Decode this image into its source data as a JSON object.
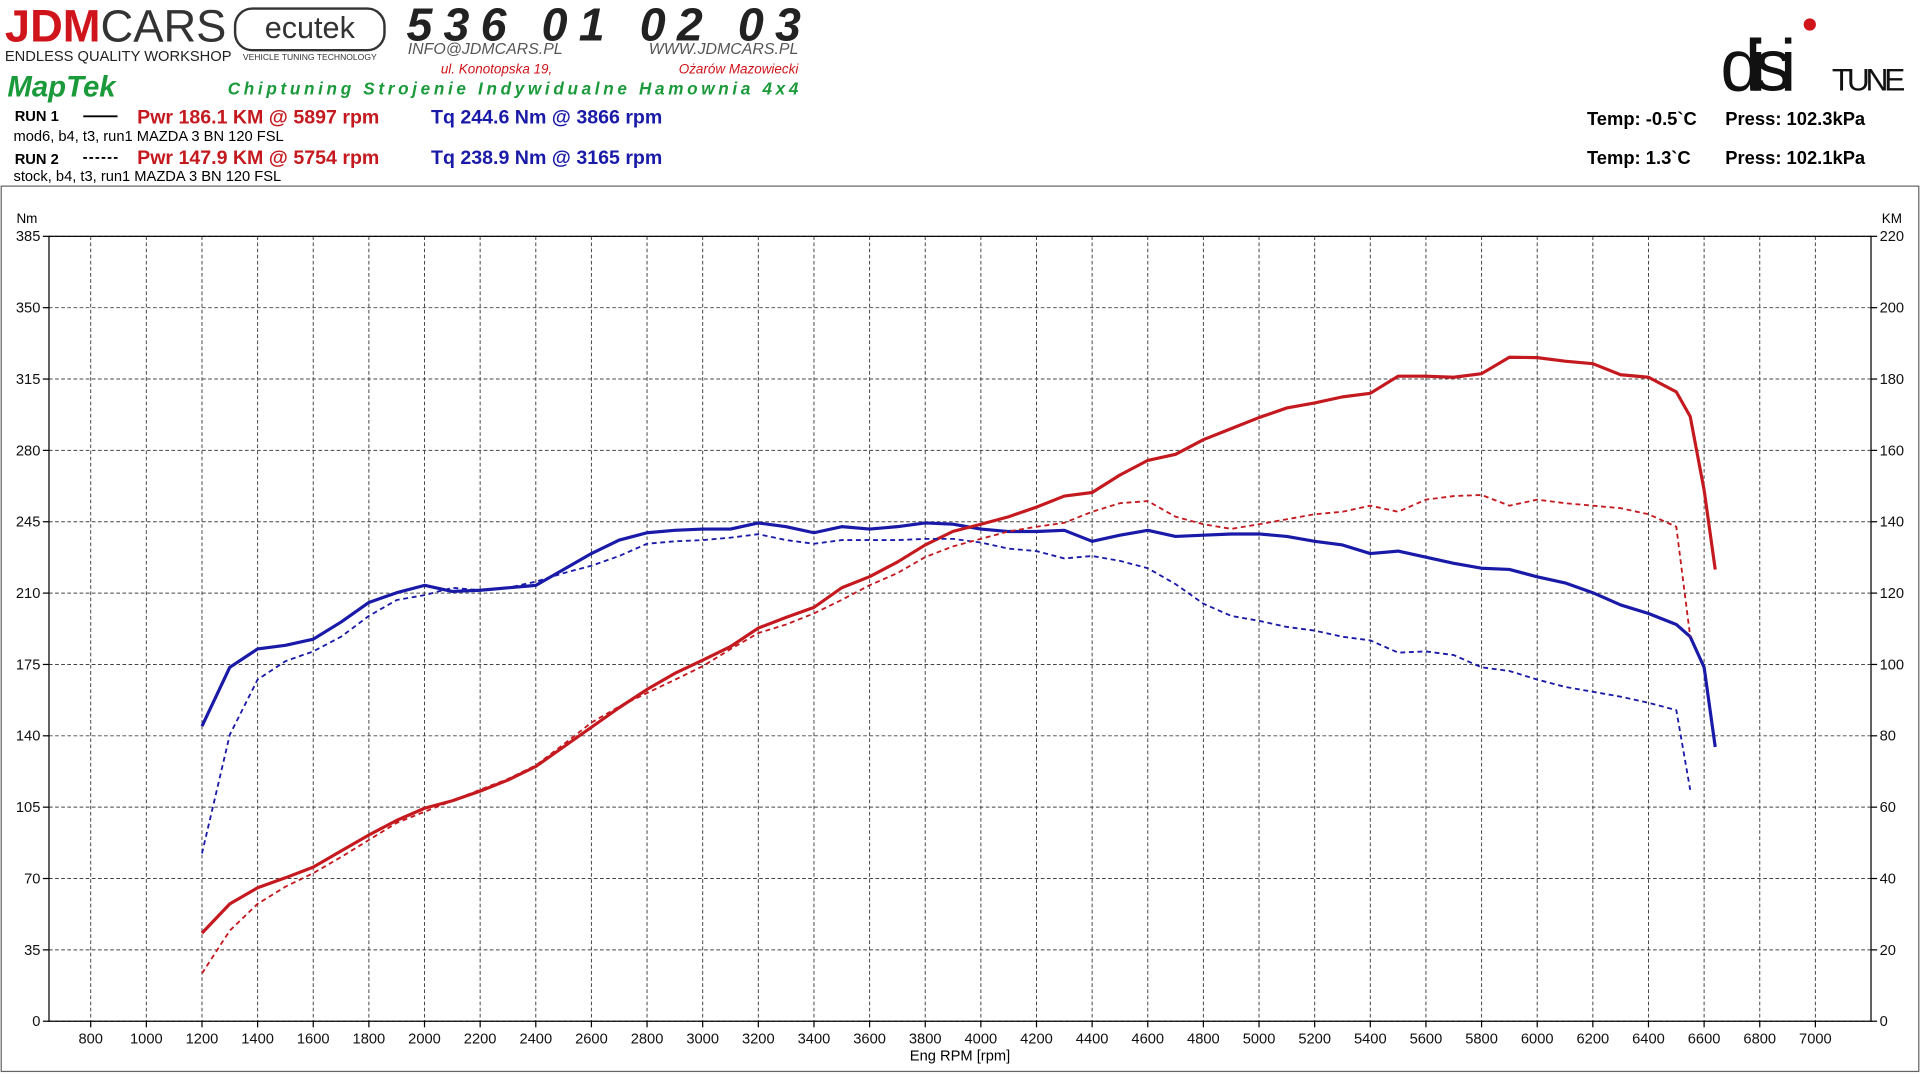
{
  "header": {
    "jdm": "JDM",
    "cars": "CARS",
    "workshop": "ENDLESS QUALITY WORKSHOP",
    "ecutek": "ecutek",
    "ecutek_sub": "VEHICLE TUNING TECHNOLOGY",
    "phone": "536 01 02 03",
    "email": "INFO@JDMCARS.PL",
    "www": "WWW.JDMCARS.PL",
    "street": "ul. Konotopska 19,",
    "city": "Ożarów Mazowiecki",
    "maptek": "MapTek",
    "services": "Chiptuning Strojenie Indywidualne Hamownia 4x4",
    "disi": "disi",
    "tune": "TUNE"
  },
  "chart_data": {
    "type": "line",
    "x_label": "Eng RPM [rpm]",
    "y_label": "Nm",
    "y2_label": "KM",
    "runs": [
      {
        "pwr": "Pwr  186.1 KM @ 5897 rpm",
        "tq": "Tq 244.6 Nm @ 3866 rpm",
        "desc": "mod6, b4, t3, run1 MAZDA 3 BN 120 FSL",
        "temp": "Temp: -0.5`C",
        "press": "Press: 102.3kPa"
      },
      {
        "pwr": "Pwr  147.9 KM @ 5754 rpm",
        "tq": "Tq 238.9 Nm @ 3165 rpm",
        "desc": "stock, b4, t3, run1 MAZDA 3 BN 120 FSL",
        "temp": "Temp: 1.3`C",
        "press": "Press: 102.1kPa"
      }
    ],
    "x": [
      1200,
      1300,
      1400,
      1500,
      1600,
      1700,
      1800,
      1900,
      2000,
      2100,
      2200,
      2300,
      2400,
      2500,
      2600,
      2700,
      2800,
      2900,
      3000,
      3100,
      3200,
      3300,
      3400,
      3500,
      3600,
      3700,
      3800,
      3900,
      4000,
      4100,
      4200,
      4300,
      4400,
      4500,
      4600,
      4700,
      4800,
      4900,
      5000,
      5100,
      5200,
      5300,
      5400,
      5500,
      5600,
      5700,
      5800,
      5900,
      6000,
      6100,
      6200,
      6300,
      6400,
      6500,
      6550,
      6600,
      6640
    ],
    "series": [
      {
        "name": "RUN 1",
        "color": "#1a1aa8",
        "dashed": false,
        "values": [
          144.7,
          173.6,
          182.6,
          184.4,
          187.4,
          195.8,
          205.4,
          210.2,
          213.8,
          210.8,
          211.4,
          212.6,
          213.8,
          221.6,
          229.4,
          236.0,
          239.6,
          240.8,
          241.4,
          241.4,
          244.4,
          242.6,
          239.6,
          242.6,
          241.4,
          242.6,
          244.4,
          243.8,
          241.4,
          240.2,
          240.2,
          240.8,
          235.4,
          238.4,
          240.8,
          237.8,
          238.4,
          239.0,
          239.0,
          237.8,
          235.4,
          233.6,
          229.4,
          230.6,
          227.6,
          224.6,
          222.2,
          221.6,
          218.0,
          215.0,
          210.2,
          204.2,
          200.0,
          194.6,
          188.6,
          173.6,
          134.5
        ]
      },
      {
        "color": "#c41a1f",
        "axis": "y2",
        "dashed": false,
        "values": [
          24.7,
          32.9,
          37.4,
          40.2,
          43.2,
          47.7,
          52.2,
          56.3,
          59.7,
          61.8,
          64.5,
          67.6,
          71.4,
          76.9,
          82.4,
          87.9,
          93.0,
          97.5,
          101.2,
          105.0,
          110.2,
          113.2,
          116.0,
          121.5,
          124.6,
          128.7,
          133.5,
          137.3,
          139.3,
          141.4,
          144.1,
          147.2,
          148.2,
          153.1,
          157.2,
          158.9,
          163.0,
          166.1,
          169.2,
          171.9,
          173.3,
          175.0,
          176.0,
          180.8,
          180.8,
          180.5,
          181.5,
          186.1,
          186.0,
          185.0,
          184.3,
          181.2,
          180.5,
          176.4,
          169.5,
          148.9,
          126.6
        ]
      },
      {
        "name": "RUN 2",
        "color": "#1a1aa8",
        "dashed": true,
        "values": [
          82.3,
          140.5,
          167.6,
          176.6,
          181.4,
          188.6,
          198.8,
          206.6,
          209.0,
          212.6,
          211.4,
          212.6,
          215.6,
          219.8,
          223.4,
          228.2,
          234.2,
          235.4,
          236.0,
          237.2,
          238.9,
          236.0,
          234.2,
          236.0,
          236.0,
          236.0,
          236.6,
          236.6,
          234.8,
          231.8,
          230.6,
          227.0,
          228.2,
          225.8,
          222.2,
          214.4,
          204.8,
          198.8,
          196.4,
          193.4,
          191.6,
          188.6,
          186.8,
          180.8,
          181.4,
          179.6,
          173.6,
          171.8,
          167.6,
          164.0,
          161.6,
          159.2,
          156.2,
          152.6,
          113.5,
          null,
          null
        ]
      },
      {
        "color": "#c41a1f",
        "axis": "y2",
        "dashed": true,
        "values": [
          13.4,
          25.4,
          32.9,
          37.7,
          41.5,
          46.0,
          50.8,
          55.6,
          58.7,
          61.8,
          64.9,
          67.9,
          71.7,
          77.6,
          83.7,
          88.2,
          92.0,
          95.7,
          99.5,
          104.3,
          108.8,
          111.2,
          114.3,
          118.1,
          122.2,
          125.6,
          130.1,
          133.1,
          135.2,
          137.3,
          138.6,
          139.7,
          142.8,
          145.2,
          145.8,
          141.4,
          139.3,
          138.0,
          139.3,
          140.7,
          142.1,
          142.8,
          144.5,
          142.8,
          146.2,
          147.2,
          147.5,
          144.5,
          146.2,
          145.2,
          144.5,
          143.8,
          142.1,
          138.6,
          107.8,
          null,
          null
        ]
      }
    ],
    "xlim": [
      650,
      7200
    ],
    "xticks": [
      800,
      1000,
      1200,
      1400,
      1600,
      1800,
      2000,
      2200,
      2400,
      2600,
      2800,
      3000,
      3200,
      3400,
      3600,
      3800,
      4000,
      4200,
      4400,
      4600,
      4800,
      5000,
      5200,
      5400,
      5600,
      5800,
      6000,
      6200,
      6400,
      6600,
      6800,
      7000
    ],
    "ylim": [
      0,
      385
    ],
    "yticks": [
      0,
      35,
      70,
      105,
      140,
      175,
      210,
      245,
      280,
      315,
      350,
      385
    ],
    "y2lim": [
      0,
      220
    ],
    "y2ticks": [
      0,
      20,
      40,
      60,
      80,
      100,
      120,
      140,
      160,
      180,
      200,
      220
    ],
    "grid": true
  }
}
